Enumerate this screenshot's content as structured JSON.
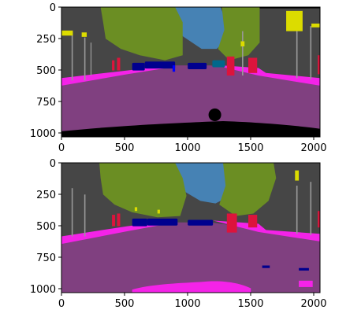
{
  "figure": {
    "panels": [
      {
        "id": "top",
        "xticks": [
          "0",
          "500",
          "1000",
          "1500",
          "2000"
        ],
        "yticks": [
          "0",
          "250",
          "500",
          "750",
          "1000"
        ]
      },
      {
        "id": "bottom",
        "xticks": [
          "0",
          "500",
          "1000",
          "1500",
          "2000"
        ],
        "yticks": [
          "0",
          "250",
          "500",
          "750",
          "1000"
        ]
      }
    ],
    "colors": {
      "building": "#464646",
      "vegetation": "#6b8e23",
      "sky": "#4682b4",
      "road": "#804080",
      "sidewalk": "#f423e8",
      "car": "#00008e",
      "person": "#dc143c",
      "pole": "#999999",
      "traffic_sign": "#dcdc00",
      "ego_vehicle": "#000000"
    }
  }
}
